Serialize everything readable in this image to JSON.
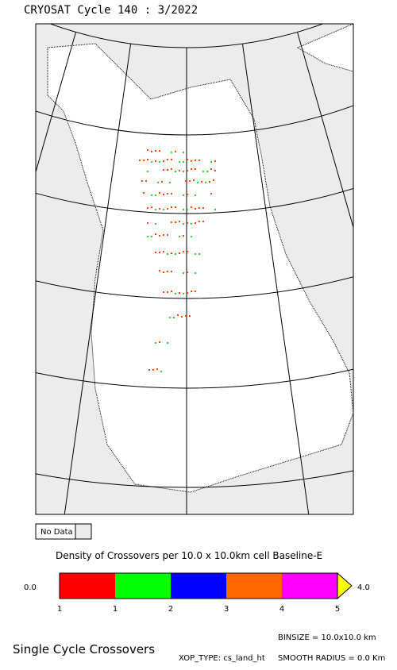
{
  "header": {
    "title": "CRYOSAT Cycle 140 : 3/2022"
  },
  "legend": {
    "no_data": "No Data",
    "title": "Density of Crossovers per  10.0 x  10.0km cell Baseline-E",
    "min_label": "0.0",
    "max_label": "4.0",
    "colors": [
      "#ff0000",
      "#00ff00",
      "#0000ff",
      "#ff6600",
      "#ff00ff"
    ],
    "over_color": "#ffff00",
    "tick_labels": [
      "1",
      "1",
      "2",
      "3",
      "4",
      "5"
    ]
  },
  "footer": {
    "heading": "Single Cycle Crossovers",
    "binsize": "BINSIZE = 10.0x10.0 km",
    "xop_type": "XOP_TYPE: cs_land_ht",
    "smooth_radius": "SMOOTH RADIUS =    0.0 Km"
  }
}
